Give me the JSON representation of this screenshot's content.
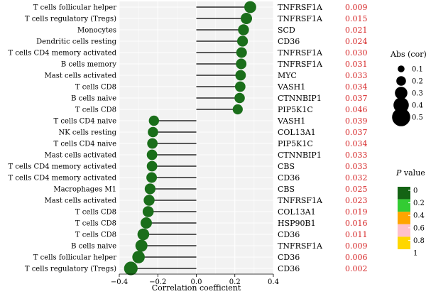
{
  "chart_data": {
    "type": "lollipop",
    "xlabel": "Correlation coefficient",
    "xlim": [
      -0.4,
      0.4
    ],
    "x_ticks": [
      "−0.4",
      "−0.2",
      "0.0",
      "0.2",
      "0.4"
    ],
    "x_tick_values": [
      -0.4,
      -0.2,
      0.0,
      0.2,
      0.4
    ],
    "grid": true,
    "rows": [
      {
        "cell": "T cells follicular helper",
        "gene": "TNFRSF1A",
        "p_label": "0.009",
        "r": 0.28
      },
      {
        "cell": "T cells regulatory (Tregs)",
        "gene": "TNFRSF1A",
        "p_label": "0.015",
        "r": 0.26
      },
      {
        "cell": "Monocytes",
        "gene": "SCD",
        "p_label": "0.021",
        "r": 0.245
      },
      {
        "cell": "Dendritic cells resting",
        "gene": "CD36",
        "p_label": "0.024",
        "r": 0.24
      },
      {
        "cell": "T cells CD4 memory activated",
        "gene": "TNFRSF1A",
        "p_label": "0.030",
        "r": 0.235
      },
      {
        "cell": "B cells memory",
        "gene": "TNFRSF1A",
        "p_label": "0.031",
        "r": 0.233
      },
      {
        "cell": "Mast cells activated",
        "gene": "MYC",
        "p_label": "0.033",
        "r": 0.23
      },
      {
        "cell": "T cells CD8",
        "gene": "VASH1",
        "p_label": "0.034",
        "r": 0.228
      },
      {
        "cell": "B cells naive",
        "gene": "CTNNBIP1",
        "p_label": "0.037",
        "r": 0.225
      },
      {
        "cell": "T cells CD8",
        "gene": "PIP5K1C",
        "p_label": "0.046",
        "r": 0.215
      },
      {
        "cell": "T cells CD4 naive",
        "gene": "VASH1",
        "p_label": "0.039",
        "r": -0.22
      },
      {
        "cell": "NK cells resting",
        "gene": "COL13A1",
        "p_label": "0.037",
        "r": -0.225
      },
      {
        "cell": "T cells CD4 naive",
        "gene": "PIP5K1C",
        "p_label": "0.034",
        "r": -0.228
      },
      {
        "cell": "Mast cells activated",
        "gene": "CTNNBIP1",
        "p_label": "0.033",
        "r": -0.23
      },
      {
        "cell": "T cells CD4 memory activated",
        "gene": "CBS",
        "p_label": "0.033",
        "r": -0.23
      },
      {
        "cell": "T cells CD4 memory activated",
        "gene": "CD36",
        "p_label": "0.032",
        "r": -0.232
      },
      {
        "cell": "Macrophages M1",
        "gene": "CBS",
        "p_label": "0.025",
        "r": -0.24
      },
      {
        "cell": "Mast cells activated",
        "gene": "TNFRSF1A",
        "p_label": "0.023",
        "r": -0.245
      },
      {
        "cell": "T cells CD8",
        "gene": "COL13A1",
        "p_label": "0.019",
        "r": -0.25
      },
      {
        "cell": "T cells CD8",
        "gene": "HSP90B1",
        "p_label": "0.016",
        "r": -0.26
      },
      {
        "cell": "T cells CD8",
        "gene": "CD36",
        "p_label": "0.011",
        "r": -0.275
      },
      {
        "cell": "B cells naive",
        "gene": "TNFRSF1A",
        "p_label": "0.009",
        "r": -0.285
      },
      {
        "cell": "T cells follicular helper",
        "gene": "CD36",
        "p_label": "0.006",
        "r": -0.3
      },
      {
        "cell": "T cells regulatory (Tregs)",
        "gene": "CD36",
        "p_label": "0.002",
        "r": -0.34
      }
    ],
    "point_color": "#1a6e1a",
    "line_color": "#000000",
    "panel_bg": "#f2f2f2",
    "grid_color": "#ffffff",
    "p_text_color": "#d62728",
    "size_legend": {
      "title": "Abs (cor)",
      "values": [
        0.1,
        0.2,
        0.3,
        0.4,
        0.5
      ],
      "labels": [
        "0.1",
        "0.2",
        "0.3",
        "0.4",
        "0.5"
      ]
    },
    "color_legend": {
      "title_italic": "P",
      "title_rest": " value",
      "labels": [
        "0",
        "0.2",
        "0.4",
        "0.6",
        "0.8",
        "1"
      ],
      "colors": [
        "#146314",
        "#33cc33",
        "#ffa500",
        "#ffc0cb",
        "#ffd700"
      ]
    }
  }
}
